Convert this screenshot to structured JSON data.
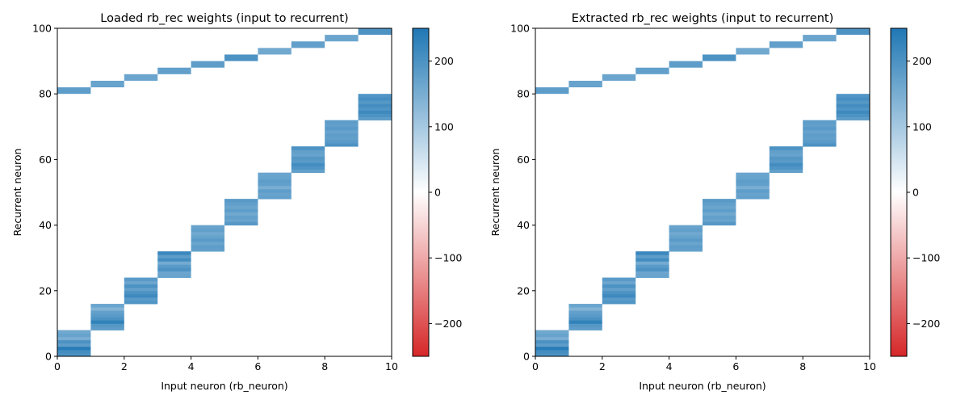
{
  "chart_data": [
    {
      "type": "heatmap",
      "title": "Loaded rb_rec weights (input to recurrent)",
      "xlabel": "Input neuron (rb_neuron)",
      "ylabel": "Recurrent neuron",
      "xlim": [
        0,
        10
      ],
      "ylim": [
        0,
        100
      ],
      "xticks": [
        0,
        2,
        4,
        6,
        8,
        10
      ],
      "yticks": [
        0,
        20,
        40,
        60,
        80,
        100
      ],
      "colorbar": {
        "range": [
          -250,
          250
        ],
        "ticks": [
          -200,
          -100,
          0,
          100,
          200
        ],
        "colors": [
          "#d62728",
          "#ffffff",
          "#1f77b4"
        ]
      },
      "columns": [
        {
          "x": 0,
          "rows": [
            200,
            210,
            240,
            180,
            200,
            150,
            170,
            160
          ],
          "upper_row": 80,
          "upper_value": 180
        },
        {
          "x": 1,
          "rows": [
            180,
            190,
            230,
            200,
            185,
            175,
            140,
            165
          ],
          "upper_row": 82,
          "upper_value": 170
        },
        {
          "x": 2,
          "rows": [
            195,
            185,
            215,
            200,
            175,
            200,
            165,
            185
          ],
          "upper_row": 84,
          "upper_value": 165
        },
        {
          "x": 3,
          "rows": [
            170,
            165,
            200,
            185,
            155,
            210,
            180,
            220
          ],
          "upper_row": 86,
          "upper_value": 175
        },
        {
          "x": 4,
          "rows": [
            175,
            180,
            165,
            185,
            170,
            160,
            175,
            170
          ],
          "upper_row": 88,
          "upper_value": 180
        },
        {
          "x": 5,
          "rows": [
            190,
            170,
            175,
            160,
            180,
            165,
            175,
            185
          ],
          "upper_row": 90,
          "upper_value": 200
        },
        {
          "x": 6,
          "rows": [
            175,
            170,
            180,
            150,
            175,
            180,
            170,
            165
          ],
          "upper_row": 92,
          "upper_value": 160
        },
        {
          "x": 7,
          "rows": [
            175,
            195,
            210,
            185,
            190,
            170,
            175,
            200
          ],
          "upper_row": 94,
          "upper_value": 175
        },
        {
          "x": 8,
          "rows": [
            200,
            185,
            175,
            180,
            170,
            185,
            175,
            180
          ],
          "upper_row": 96,
          "upper_value": 165
        },
        {
          "x": 9,
          "rows": [
            180,
            200,
            215,
            195,
            210,
            190,
            205,
            195
          ],
          "upper_row": 98,
          "upper_value": 200
        }
      ]
    },
    {
      "type": "heatmap",
      "title": "Extracted rb_rec weights (input to recurrent)",
      "xlabel": "Input neuron (rb_neuron)",
      "ylabel": "Recurrent neuron",
      "xlim": [
        0,
        10
      ],
      "ylim": [
        0,
        100
      ],
      "xticks": [
        0,
        2,
        4,
        6,
        8,
        10
      ],
      "yticks": [
        0,
        20,
        40,
        60,
        80,
        100
      ],
      "colorbar": {
        "range": [
          -250,
          250
        ],
        "ticks": [
          -200,
          -100,
          0,
          100,
          200
        ],
        "colors": [
          "#d62728",
          "#ffffff",
          "#1f77b4"
        ]
      },
      "columns": [
        {
          "x": 0,
          "rows": [
            200,
            210,
            240,
            180,
            200,
            150,
            170,
            160
          ],
          "upper_row": 80,
          "upper_value": 180
        },
        {
          "x": 1,
          "rows": [
            180,
            190,
            230,
            200,
            185,
            175,
            140,
            165
          ],
          "upper_row": 82,
          "upper_value": 170
        },
        {
          "x": 2,
          "rows": [
            195,
            185,
            215,
            200,
            175,
            200,
            165,
            185
          ],
          "upper_row": 84,
          "upper_value": 165
        },
        {
          "x": 3,
          "rows": [
            170,
            165,
            200,
            185,
            155,
            210,
            180,
            220
          ],
          "upper_row": 86,
          "upper_value": 175
        },
        {
          "x": 4,
          "rows": [
            175,
            180,
            165,
            185,
            170,
            160,
            175,
            170
          ],
          "upper_row": 88,
          "upper_value": 180
        },
        {
          "x": 5,
          "rows": [
            190,
            170,
            175,
            160,
            180,
            165,
            175,
            185
          ],
          "upper_row": 90,
          "upper_value": 200
        },
        {
          "x": 6,
          "rows": [
            175,
            170,
            180,
            150,
            175,
            180,
            170,
            165
          ],
          "upper_row": 92,
          "upper_value": 160
        },
        {
          "x": 7,
          "rows": [
            175,
            195,
            210,
            185,
            190,
            170,
            175,
            200
          ],
          "upper_row": 94,
          "upper_value": 175
        },
        {
          "x": 8,
          "rows": [
            200,
            185,
            175,
            180,
            170,
            185,
            175,
            180
          ],
          "upper_row": 96,
          "upper_value": 165
        },
        {
          "x": 9,
          "rows": [
            180,
            200,
            215,
            195,
            210,
            190,
            205,
            195
          ],
          "upper_row": 98,
          "upper_value": 200
        }
      ]
    }
  ]
}
